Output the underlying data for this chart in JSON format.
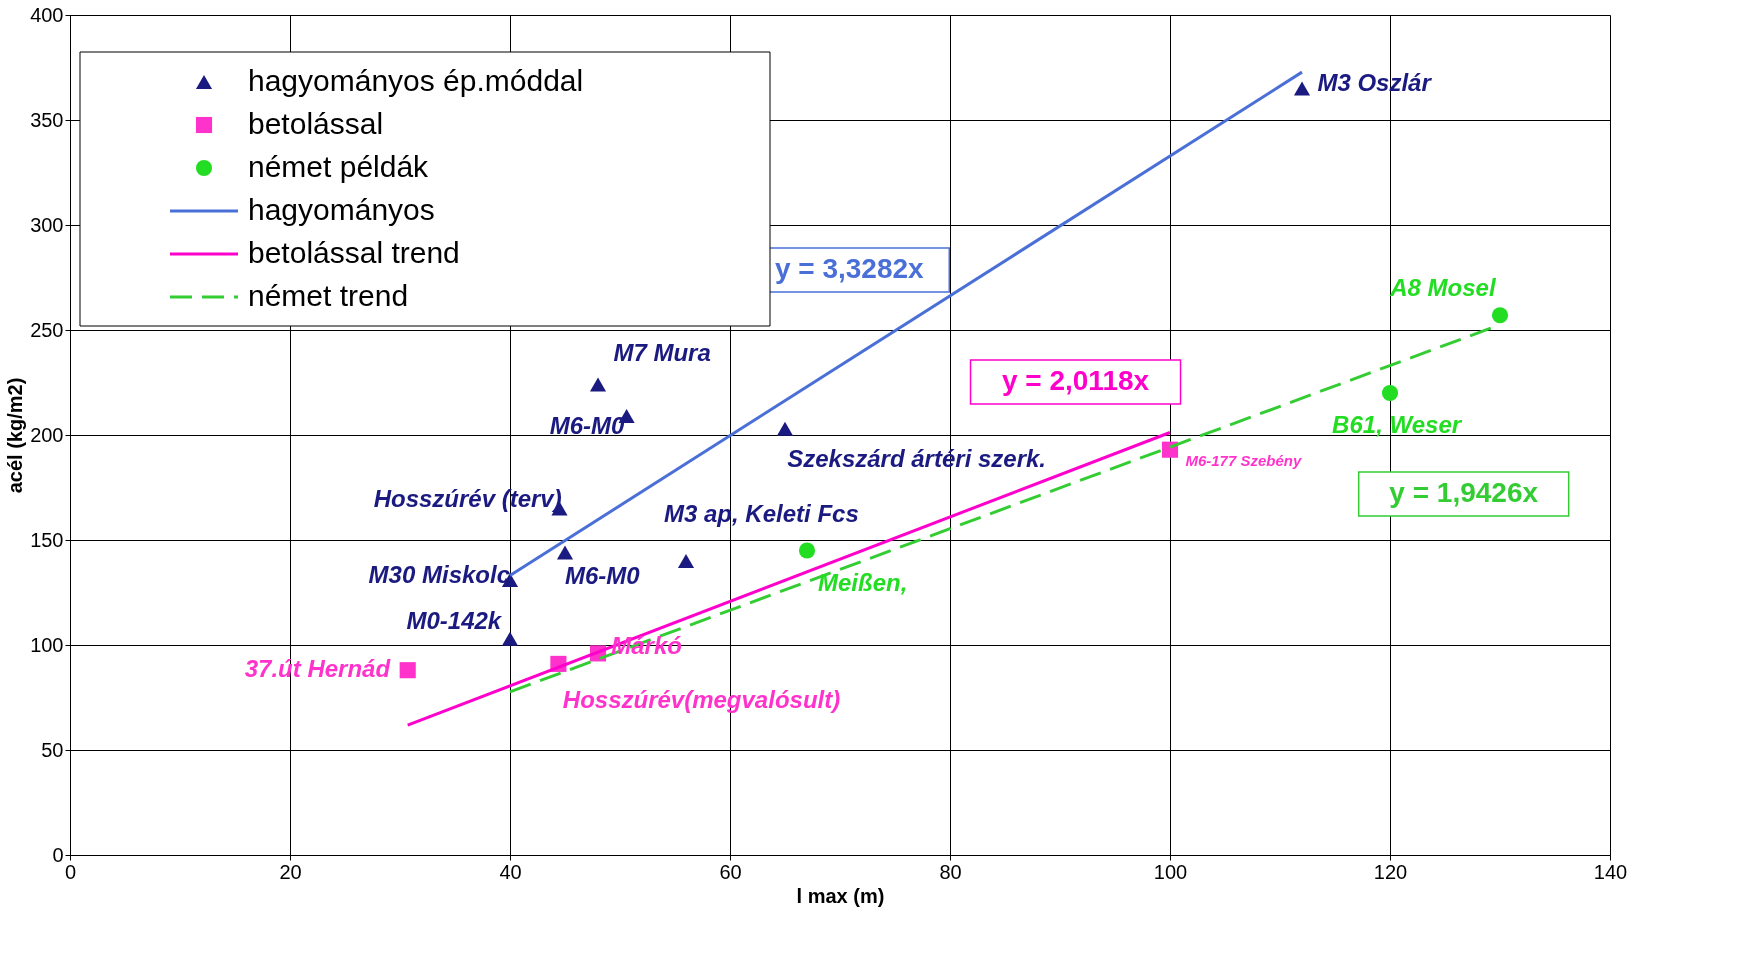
{
  "chart_data": {
    "type": "scatter",
    "xlabel": "l max (m)",
    "ylabel": "acél (kg/m2)",
    "xlim": [
      0,
      140
    ],
    "xticks": [
      0,
      20,
      40,
      60,
      80,
      100,
      120,
      140
    ],
    "ylim": [
      0,
      400
    ],
    "yticks": [
      0,
      50,
      100,
      150,
      200,
      250,
      300,
      350,
      400
    ],
    "grid": true,
    "legend": "top left",
    "series": [
      {
        "name": "hagyományos ép.móddal",
        "marker": "triangle",
        "color": "#1a1a80",
        "x": [
          112,
          48,
          50.6,
          65,
          44.5,
          45,
          56,
          40,
          40
        ],
        "values": [
          365,
          224,
          209,
          203,
          165,
          144,
          140,
          131,
          103
        ]
      },
      {
        "name": "betolással",
        "marker": "square",
        "color": "#ff33cc",
        "x": [
          30.7,
          44.4,
          48,
          100
        ],
        "values": [
          88,
          91,
          96,
          193
        ]
      },
      {
        "name": "német példák",
        "marker": "circle",
        "color": "#22dd22",
        "x": [
          67,
          120,
          130
        ],
        "values": [
          145,
          220,
          257
        ]
      },
      {
        "name": "hagyományos",
        "type": "line",
        "line_style": "solid",
        "color": "#4a70d8",
        "x": [
          40,
          112
        ],
        "values": [
          133.1,
          372.8
        ]
      },
      {
        "name": "betolással trend",
        "type": "line",
        "line_style": "solid",
        "color": "#ff00cc",
        "x": [
          30.7,
          100
        ],
        "values": [
          61.8,
          201.2
        ]
      },
      {
        "name": "német trend",
        "type": "line",
        "line_style": "dashed",
        "color": "#33cc33",
        "x": [
          40,
          130
        ],
        "values": [
          77.7,
          252.5
        ]
      }
    ],
    "annotations": [
      {
        "text": "M3 Oszlár",
        "x": 112,
        "y": 365
      },
      {
        "text": "M7 Mura",
        "x": 48,
        "y": 224
      },
      {
        "text": "M6-M0",
        "x": 50.6,
        "y": 209
      },
      {
        "text": "Szekszárd ártéri szerk.",
        "x": 65,
        "y": 203
      },
      {
        "text": "Hosszúrév (terv)",
        "x": 44.5,
        "y": 165
      },
      {
        "text": "M6-M0",
        "x": 45,
        "y": 144
      },
      {
        "text": "M3 ap, Keleti Fcs",
        "x": 56,
        "y": 140
      },
      {
        "text": "M30 Miskolc",
        "x": 40,
        "y": 131
      },
      {
        "text": "M0-142k",
        "x": 40,
        "y": 103
      },
      {
        "text": "37.út Hernád",
        "x": 30.7,
        "y": 88
      },
      {
        "text": "Márkó",
        "x": 48,
        "y": 96
      },
      {
        "text": "Hosszúrév(megvalósult)",
        "x": 44.4,
        "y": 91
      },
      {
        "text": "M6-177 Szebény",
        "x": 100,
        "y": 193
      },
      {
        "text": "Meißen,",
        "x": 67,
        "y": 145
      },
      {
        "text": "B61, Weser",
        "x": 120,
        "y": 220
      },
      {
        "text": "A8  Mosel",
        "x": 130,
        "y": 257
      },
      "y = 3,3282x",
      "y = 2,0118x",
      "y = 1,9426x"
    ]
  }
}
